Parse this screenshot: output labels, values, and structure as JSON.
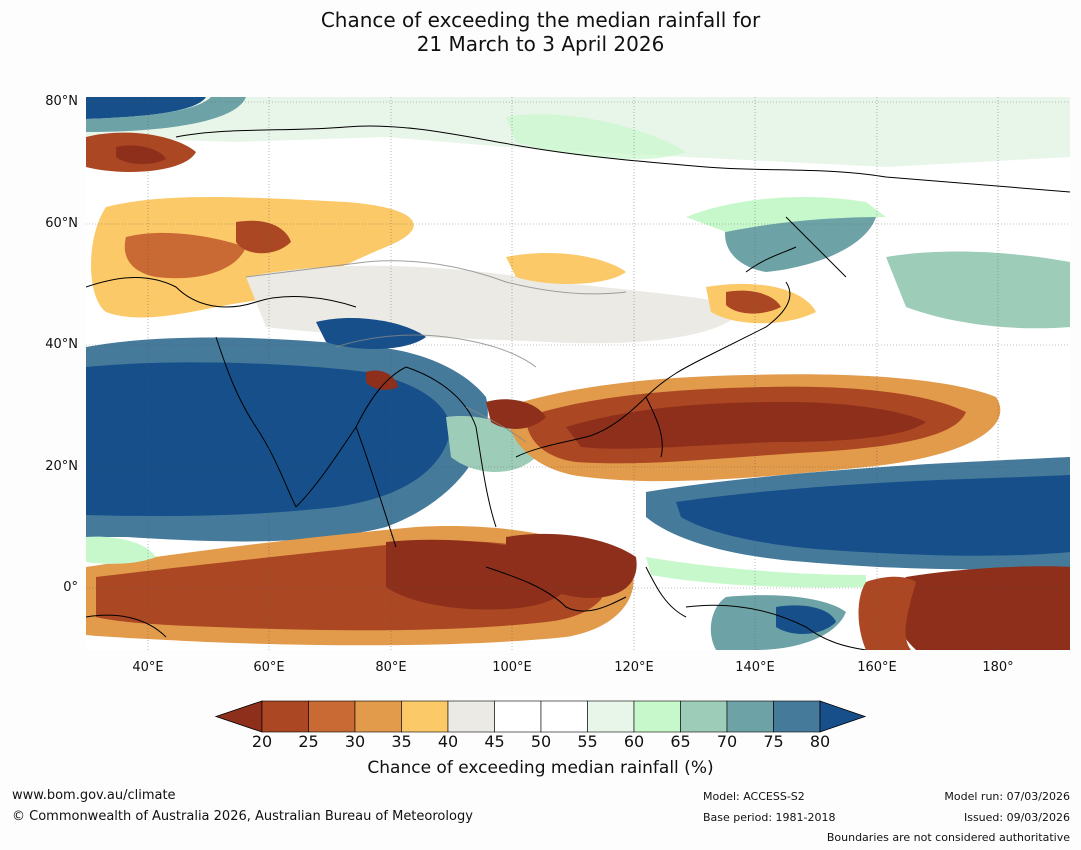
{
  "title": {
    "line1": "Chance of exceeding the median rainfall for",
    "line2": "21 March to 3 April 2026"
  },
  "map": {
    "lat_labels": [
      "80°N",
      "60°N",
      "40°N",
      "20°N",
      "0°"
    ],
    "lon_labels": [
      "40°E",
      "60°E",
      "80°E",
      "100°E",
      "120°E",
      "140°E",
      "160°E",
      "180°"
    ]
  },
  "colorbar": {
    "label": "Chance of exceeding median rainfall (%)",
    "ticks": [
      "20",
      "25",
      "30",
      "35",
      "40",
      "45",
      "50",
      "55",
      "60",
      "65",
      "70",
      "75",
      "80"
    ],
    "colors": [
      "#8e2f1b",
      "#ab4723",
      "#c96a34",
      "#e29a4b",
      "#fcc968",
      "#eceae4",
      "#ffffff",
      "#ffffff",
      "#e8f5e9",
      "#c7f8cb",
      "#9dcdb8",
      "#6da3a6",
      "#457a9b",
      "#164f8a"
    ]
  },
  "footer": {
    "website": "www.bom.gov.au/climate",
    "copyright": "© Commonwealth of Australia 2026, Australian Bureau of Meteorology",
    "model": "Model: ACCESS-S2",
    "base_period": "Base period: 1981-2018",
    "model_run": "Model run: 07/03/2026",
    "issued": "Issued: 09/03/2026",
    "disclaimer": "Boundaries are not considered authoritative"
  }
}
